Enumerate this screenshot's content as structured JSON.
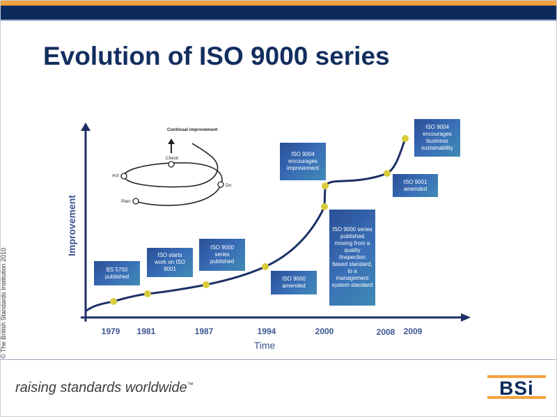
{
  "slide": {
    "title": "Evolution of ISO 9000 series",
    "copyright": "© The British Standards Institution 2010",
    "tagline": "raising standards worldwide",
    "trademark": "™",
    "logo": "BSi"
  },
  "diagram": {
    "y_axis_label": "Improvement",
    "x_axis_label": "Time",
    "years": [
      "1979",
      "1981",
      "1987",
      "1994",
      "2000",
      "2008",
      "2009"
    ],
    "milestones": [
      "BS 5750 published",
      "ISO starts work on ISO 9001",
      "ISO 9000 series published",
      "ISO 9000 amended",
      "ISO 9000 series published moving from a quality /inspection based standard, to a management system standard",
      "ISO 9004 encourages improvement",
      "ISO 9001 amended",
      "ISO 9004 encourages business sustainability"
    ],
    "cycle": {
      "top_label": "Continual improvement",
      "plan": "Plan",
      "do": "Do",
      "check": "Check",
      "act": "Act"
    }
  },
  "colors": {
    "navy": "#0c2a5c",
    "orange": "#f3a23d",
    "curve": "#1c2f66",
    "dot": "#d9cc3b",
    "box": "#2f5ea8"
  }
}
